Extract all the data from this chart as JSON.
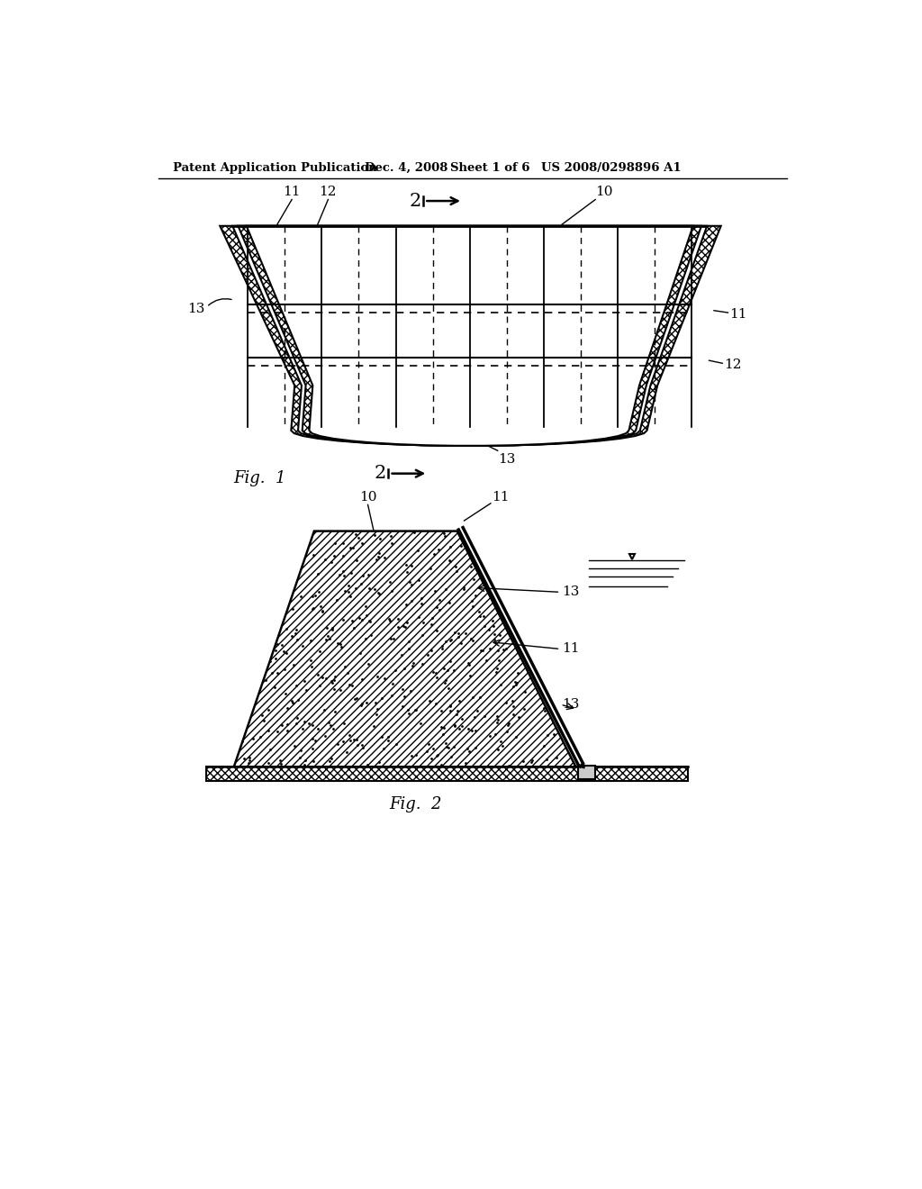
{
  "background_color": "#ffffff",
  "header_text": "Patent Application Publication",
  "header_date": "Dec. 4, 2008",
  "header_sheet": "Sheet 1 of 6",
  "header_patent": "US 2008/0298896 A1",
  "fig1_label": "Fig.  1",
  "fig2_label": "Fig.  2",
  "line_color": "#000000"
}
